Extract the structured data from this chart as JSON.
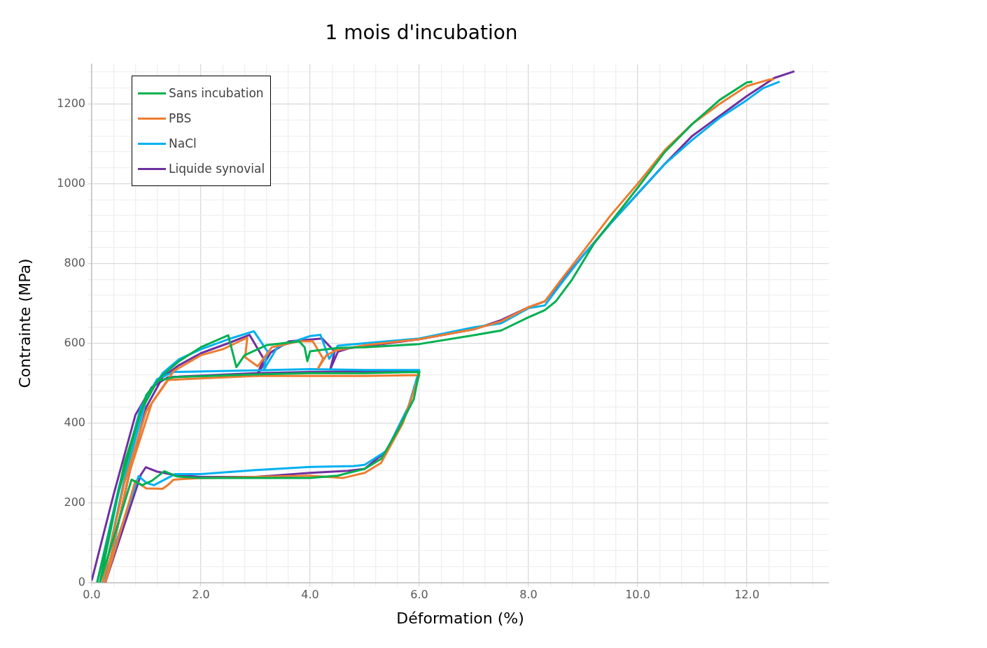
{
  "chart_data": {
    "type": "line",
    "title": "1 mois d'incubation",
    "xlabel": "Déformation (%)",
    "ylabel": "Contrainte (MPa)",
    "xlim": [
      0,
      13.5
    ],
    "ylim": [
      0,
      1300
    ],
    "xticks": [
      {
        "value": 0,
        "label": "0.0"
      },
      {
        "value": 0.4,
        "label": null
      },
      {
        "value": 0.8,
        "label": null
      },
      {
        "value": 1.2,
        "label": null
      },
      {
        "value": 1.6,
        "label": null
      },
      {
        "value": 2,
        "label": "2.0"
      },
      {
        "value": 2.4,
        "label": null
      },
      {
        "value": 2.8,
        "label": null
      },
      {
        "value": 3.2,
        "label": null
      },
      {
        "value": 3.6,
        "label": null
      },
      {
        "value": 4,
        "label": "4.0"
      },
      {
        "value": 4.4,
        "label": null
      },
      {
        "value": 4.8,
        "label": null
      },
      {
        "value": 5.2,
        "label": null
      },
      {
        "value": 5.6,
        "label": null
      },
      {
        "value": 6,
        "label": "6.0"
      },
      {
        "value": 6.4,
        "label": null
      },
      {
        "value": 6.8,
        "label": null
      },
      {
        "value": 7.2,
        "label": null
      },
      {
        "value": 7.6,
        "label": null
      },
      {
        "value": 8,
        "label": "8.0"
      },
      {
        "value": 8.4,
        "label": null
      },
      {
        "value": 8.8,
        "label": null
      },
      {
        "value": 9.2,
        "label": null
      },
      {
        "value": 9.6,
        "label": null
      },
      {
        "value": 10,
        "label": "10.0"
      },
      {
        "value": 10.4,
        "label": null
      },
      {
        "value": 10.8,
        "label": null
      },
      {
        "value": 11.2,
        "label": null
      },
      {
        "value": 11.6,
        "label": null
      },
      {
        "value": 12,
        "label": "12.0"
      },
      {
        "value": 12.4,
        "label": null
      },
      {
        "value": 12.8,
        "label": null
      },
      {
        "value": 13.2,
        "label": null
      }
    ],
    "yticks": [
      0,
      {
        "value": 40,
        "label": null
      },
      {
        "value": 80,
        "label": null
      },
      {
        "value": 120,
        "label": null
      },
      {
        "value": 160,
        "label": null
      },
      200,
      {
        "value": 240,
        "label": null
      },
      {
        "value": 280,
        "label": null
      },
      {
        "value": 320,
        "label": null
      },
      {
        "value": 360,
        "label": null
      },
      400,
      {
        "value": 440,
        "label": null
      },
      {
        "value": 480,
        "label": null
      },
      {
        "value": 520,
        "label": null
      },
      {
        "value": 560,
        "label": null
      },
      600,
      {
        "value": 640,
        "label": null
      },
      {
        "value": 680,
        "label": null
      },
      {
        "value": 720,
        "label": null
      },
      {
        "value": 760,
        "label": null
      },
      800,
      {
        "value": 840,
        "label": null
      },
      {
        "value": 880,
        "label": null
      },
      {
        "value": 920,
        "label": null
      },
      {
        "value": 960,
        "label": null
      },
      1000,
      {
        "value": 1040,
        "label": null
      },
      {
        "value": 1080,
        "label": null
      },
      {
        "value": 1120,
        "label": null
      },
      {
        "value": 1160,
        "label": null
      },
      1200,
      {
        "value": 1240,
        "label": null
      },
      {
        "value": 1280,
        "label": null
      }
    ],
    "grid": true,
    "legend": "top left",
    "series": [
      {
        "name": "Sans incubation",
        "color": "#00b050",
        "x": [
          0.1,
          0.5,
          0.9,
          1.2,
          1.5,
          3,
          4,
          5,
          6,
          5.9,
          5.6,
          5.3,
          5,
          4.5,
          4,
          3,
          2,
          1.56,
          1.33,
          1.1,
          0.92,
          0.73,
          0.15,
          0.6,
          1,
          1.3,
          1.6,
          2,
          2.5,
          2.65,
          2.8,
          3.2,
          3.8,
          3.9,
          3.95,
          4,
          4.5,
          5,
          6,
          7,
          7.5,
          8,
          8.3,
          8.5,
          8.8,
          9.2,
          9.6,
          10,
          10.5,
          11,
          11.5,
          12,
          12.1
        ],
        "values": [
          0,
          230,
          430,
          505,
          515,
          522,
          525,
          525,
          528,
          460,
          380,
          310,
          285,
          268,
          262,
          262,
          262,
          266,
          279,
          255,
          244,
          258,
          0,
          300,
          470,
          520,
          555,
          590,
          620,
          540,
          570,
          595,
          605,
          590,
          555,
          580,
          588,
          590,
          598,
          620,
          632,
          665,
          683,
          705,
          760,
          850,
          920,
          990,
          1080,
          1150,
          1210,
          1254,
          1256
        ]
      },
      {
        "name": "PBS",
        "color": "#ed7d31",
        "x": [
          0.2,
          0.6,
          1,
          1.4,
          2,
          3,
          4,
          5,
          6,
          5.7,
          5.3,
          5,
          4.6,
          4,
          3,
          2,
          1.5,
          1.4,
          1.3,
          1,
          0.8,
          0.25,
          0.7,
          1.1,
          1.5,
          2,
          2.4,
          2.85,
          2.81,
          3.04,
          3.3,
          3.8,
          4.05,
          4.24,
          4.15,
          4.3,
          4.47,
          5,
          6,
          7,
          7.5,
          8,
          8.3,
          8.6,
          9,
          9.5,
          10,
          10.5,
          11,
          11.5,
          12,
          12.4,
          12.5
        ],
        "values": [
          0,
          250,
          430,
          508,
          512,
          518,
          518,
          518,
          520,
          400,
          300,
          275,
          262,
          268,
          265,
          262,
          258,
          245,
          235,
          236,
          255,
          0,
          280,
          450,
          530,
          570,
          585,
          614,
          565,
          542,
          590,
          605,
          605,
          561,
          538,
          570,
          582,
          595,
          610,
          635,
          655,
          690,
          705,
          760,
          830,
          920,
          1000,
          1085,
          1150,
          1200,
          1245,
          1261,
          1262
        ]
      },
      {
        "name": "NaCl",
        "color": "#00b0f0",
        "x": [
          0.1,
          0.5,
          0.9,
          1.2,
          1.5,
          3,
          4,
          5,
          6,
          5.8,
          5.4,
          5,
          4.8,
          4,
          3,
          2,
          1.53,
          1.14,
          1.0,
          0.86,
          0.2,
          0.6,
          1,
          1.3,
          1.6,
          2,
          2.5,
          2.97,
          3.22,
          3.15,
          3.4,
          4,
          4.19,
          4.35,
          4.51,
          5,
          6,
          7,
          7.5,
          8,
          8.3,
          8.6,
          9,
          9.5,
          10,
          10.5,
          11,
          11.5,
          12,
          12.3,
          12.6
        ],
        "values": [
          0,
          240,
          440,
          510,
          528,
          532,
          535,
          533,
          533,
          440,
          330,
          295,
          292,
          290,
          282,
          272,
          272,
          244,
          250,
          267,
          0,
          260,
          460,
          525,
          560,
          585,
          610,
          630,
          579,
          533,
          590,
          618,
          621,
          561,
          594,
          600,
          612,
          640,
          650,
          688,
          695,
          750,
          820,
          900,
          975,
          1050,
          1110,
          1165,
          1210,
          1240,
          1256
        ]
      },
      {
        "name": "Liquide synovial",
        "color": "#7030a0",
        "x": [
          0,
          0.4,
          0.8,
          1.1,
          1.4,
          3,
          4,
          5,
          6,
          5.8,
          5.4,
          5,
          4.7,
          4,
          3,
          2,
          1.5,
          1.2,
          0.99,
          0.9,
          0.25,
          0.7,
          1,
          1.3,
          1.6,
          2,
          2.5,
          2.89,
          3.15,
          3.02,
          3.28,
          3.62,
          4.22,
          4.45,
          4.37,
          4.51,
          4.73,
          5,
          6,
          7,
          7.5,
          8,
          8.3,
          8.6,
          9,
          9.5,
          10,
          10.5,
          11,
          11.5,
          12,
          12.5,
          12.87
        ],
        "values": [
          5,
          220,
          420,
          490,
          515,
          525,
          528,
          530,
          528,
          440,
          330,
          285,
          280,
          275,
          265,
          265,
          270,
          278,
          289,
          270,
          0,
          280,
          440,
          515,
          545,
          575,
          600,
          621,
          561,
          518,
          577,
          605,
          612,
          579,
          535,
          579,
          588,
          592,
          610,
          635,
          658,
          690,
          705,
          755,
          820,
          900,
          975,
          1050,
          1120,
          1170,
          1220,
          1265,
          1282
        ]
      }
    ]
  }
}
